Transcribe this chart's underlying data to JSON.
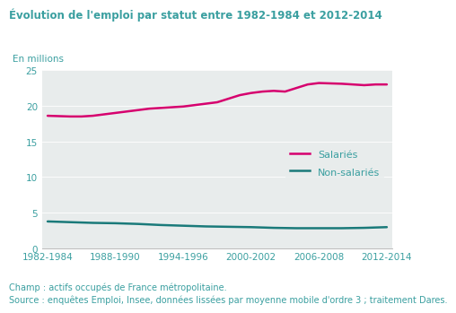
{
  "title": "Évolution de l'emploi par statut entre 1982-1984 et 2012-2014",
  "ylabel": "En millions",
  "title_color": "#3a9fa0",
  "text_color": "#3a9fa0",
  "caption_color": "#3a9fa0",
  "fig_bg": "#ffffff",
  "plot_bg": "#e8ecec",
  "x_labels": [
    "1982-1984",
    "1988-1990",
    "1994-1996",
    "2000-2002",
    "2006-2008",
    "2012-2014"
  ],
  "x_tick_pos": [
    0,
    6,
    12,
    18,
    24,
    30
  ],
  "salaries": {
    "label": "Salariés",
    "color": "#d6006e",
    "x": [
      0,
      1,
      2,
      3,
      4,
      5,
      6,
      7,
      8,
      9,
      10,
      11,
      12,
      13,
      14,
      15,
      16,
      17,
      18,
      19,
      20,
      21,
      22,
      23,
      24,
      25,
      26,
      27,
      28,
      29,
      30
    ],
    "values": [
      18.6,
      18.55,
      18.5,
      18.5,
      18.6,
      18.8,
      19.0,
      19.2,
      19.4,
      19.6,
      19.7,
      19.8,
      19.9,
      20.1,
      20.3,
      20.5,
      21.0,
      21.5,
      21.8,
      22.0,
      22.1,
      22.0,
      22.5,
      23.0,
      23.2,
      23.15,
      23.1,
      23.0,
      22.9,
      23.0,
      23.0
    ]
  },
  "non_salaries": {
    "label": "Non-salariés",
    "color": "#1a7a7a",
    "x": [
      0,
      2,
      4,
      6,
      8,
      10,
      12,
      14,
      16,
      18,
      20,
      22,
      24,
      26,
      28,
      30
    ],
    "values": [
      3.75,
      3.65,
      3.55,
      3.5,
      3.4,
      3.25,
      3.15,
      3.05,
      3.0,
      2.95,
      2.85,
      2.8,
      2.8,
      2.8,
      2.85,
      2.95
    ]
  },
  "ylim": [
    0,
    25
  ],
  "xlim": [
    -0.5,
    30.5
  ],
  "yticks": [
    0,
    5,
    10,
    15,
    20,
    25
  ],
  "caption_line1": "Champ : actifs occupés de France métropolitaine.",
  "caption_line2": "Source : enquêtes Emploi, Insee, données lissées par moyenne mobile d'ordre 3 ; traitement Dares.",
  "title_fontsize": 8.5,
  "axis_fontsize": 7.5,
  "caption_fontsize": 7.0,
  "legend_fontsize": 8.0
}
